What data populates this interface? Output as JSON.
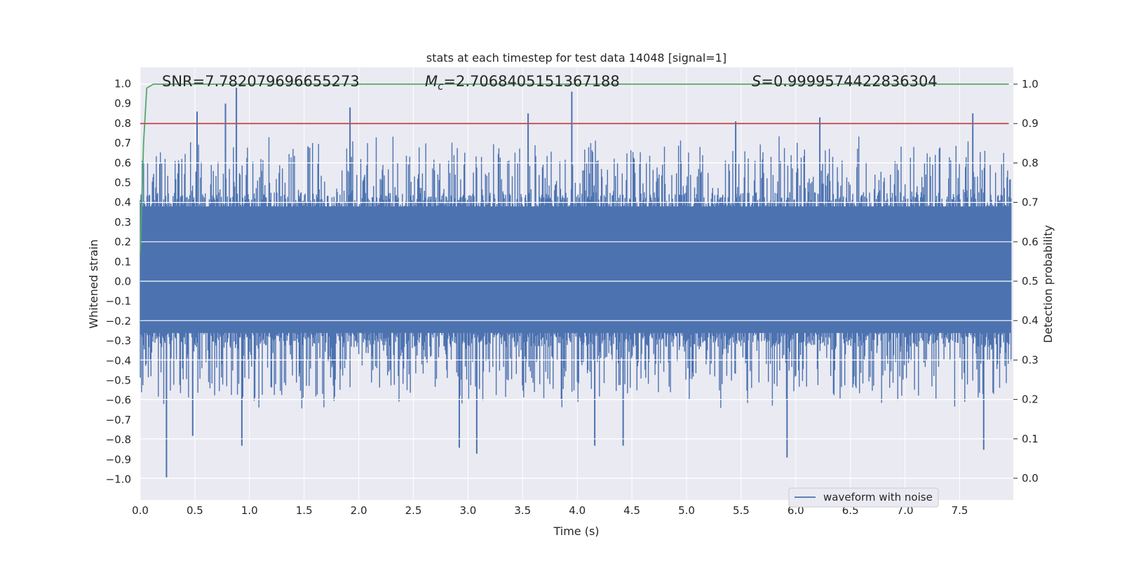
{
  "chart_data": {
    "type": "line",
    "title": "stats at each timestep for test data 14048 [signal=1]",
    "xlabel": "Time (s)",
    "ylabel": "Whitened strain",
    "ylabel_right": "Detection probability",
    "xlim": [
      0.0,
      8.0
    ],
    "ylim": [
      -1.1,
      1.1
    ],
    "ylim_right": [
      -0.05,
      1.05
    ],
    "x_ticks": [
      "0.0",
      "0.5",
      "1.0",
      "1.5",
      "2.0",
      "2.5",
      "3.0",
      "3.5",
      "4.0",
      "4.5",
      "5.0",
      "5.5",
      "6.0",
      "6.5",
      "7.0",
      "7.5"
    ],
    "y_ticks": [
      "1.0",
      "0.9",
      "0.8",
      "0.7",
      "0.6",
      "0.5",
      "0.4",
      "0.3",
      "0.2",
      "0.1",
      "0.0",
      "−0.1",
      "−0.2",
      "−0.3",
      "−0.4",
      "−0.5",
      "−0.6",
      "−0.7",
      "−0.8",
      "−0.9",
      "−1.0"
    ],
    "y_ticks_right": [
      "1.0",
      "0.9",
      "0.8",
      "0.7",
      "0.6",
      "0.5",
      "0.4",
      "0.3",
      "0.2",
      "0.1",
      "0.0"
    ],
    "grid": true,
    "legend_position": "lower-right",
    "annotations": {
      "snr": "SNR=7.782079696655273",
      "mc_symbol": "M",
      "mc_subscript": "c",
      "mc_value": "=2.7068405151367188",
      "s_symbol": "S",
      "s_value": "=0.9999574422836304"
    },
    "series": [
      {
        "name": "waveform with noise",
        "axis": "left",
        "color": "#4c72b0",
        "description": "dense noisy whitened strain waveform spanning roughly -1.0 to 1.0",
        "core_band": [
          -0.26,
          0.38
        ],
        "peaks_positive": [
          {
            "x": 0.52,
            "y": 0.86
          },
          {
            "x": 0.78,
            "y": 0.9
          },
          {
            "x": 0.88,
            "y": 0.98
          },
          {
            "x": 1.92,
            "y": 0.88
          },
          {
            "x": 3.55,
            "y": 0.85
          },
          {
            "x": 3.95,
            "y": 0.96
          },
          {
            "x": 5.45,
            "y": 0.81
          },
          {
            "x": 6.22,
            "y": 0.83
          },
          {
            "x": 7.62,
            "y": 0.85
          }
        ],
        "peaks_negative": [
          {
            "x": 0.24,
            "y": -0.99
          },
          {
            "x": 0.48,
            "y": -0.78
          },
          {
            "x": 0.93,
            "y": -0.83
          },
          {
            "x": 2.92,
            "y": -0.84
          },
          {
            "x": 3.08,
            "y": -0.87
          },
          {
            "x": 4.16,
            "y": -0.83
          },
          {
            "x": 4.42,
            "y": -0.83
          },
          {
            "x": 5.92,
            "y": -0.89
          },
          {
            "x": 7.72,
            "y": -0.85
          }
        ]
      },
      {
        "name": "",
        "axis": "right",
        "color": "#55a868",
        "description": "detection probability over time",
        "x": [
          0.0,
          0.03,
          0.06,
          0.12,
          7.95
        ],
        "y": [
          0.57,
          0.85,
          0.99,
          1.0,
          1.0
        ]
      },
      {
        "name": "",
        "axis": "right",
        "color": "#c44e52",
        "description": "detection threshold",
        "x": [
          0.0,
          7.95
        ],
        "y": [
          0.9,
          0.9
        ]
      }
    ]
  }
}
